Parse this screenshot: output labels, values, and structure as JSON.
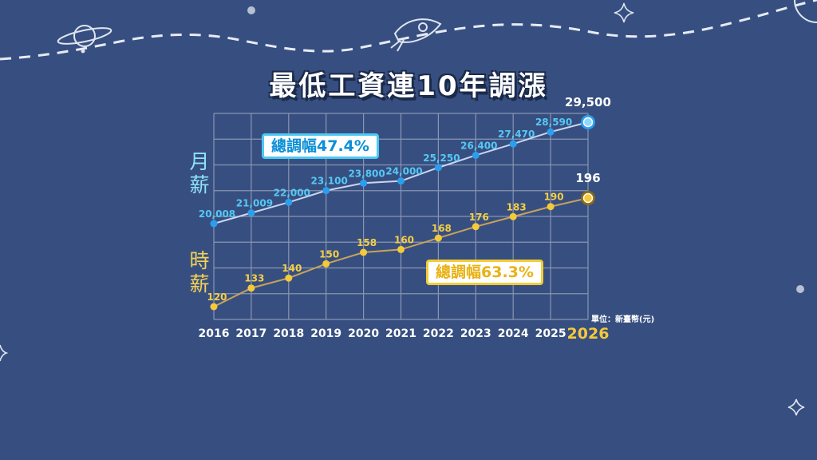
{
  "title": "最低工資連10年調漲",
  "side_labels": {
    "monthly": "月薪",
    "hourly": "時薪"
  },
  "callouts": {
    "monthly": "總調幅47.4%",
    "hourly": "總調幅63.3%"
  },
  "unit_note": "單位：新臺幣(元)",
  "colors": {
    "background": "#374f80",
    "monthly_line": "#c9d6f0",
    "monthly_point": "#2a9ff0",
    "monthly_label": "#55c8f5",
    "hourly_line": "#c7a35a",
    "hourly_point": "#f5c93a",
    "hourly_label": "#f5cf46",
    "grid": "#8995b3",
    "highlight_year": "#f5c93a"
  },
  "chart_data": {
    "type": "line",
    "categories": [
      "2016",
      "2017",
      "2018",
      "2019",
      "2020",
      "2021",
      "2022",
      "2023",
      "2024",
      "2025",
      "2026"
    ],
    "series": [
      {
        "name": "月薪",
        "values": [
          20008,
          21009,
          22000,
          23100,
          23800,
          24000,
          25250,
          26400,
          27470,
          28590,
          29500
        ],
        "labels": [
          "20,008",
          "21,009",
          "22,000",
          "23,100",
          "23,800",
          "24,000",
          "25,250",
          "26,400",
          "27,470",
          "28,590",
          "29,500"
        ]
      },
      {
        "name": "時薪",
        "values": [
          120,
          133,
          140,
          150,
          158,
          160,
          168,
          176,
          183,
          190,
          196
        ],
        "labels": [
          "120",
          "133",
          "140",
          "150",
          "158",
          "160",
          "168",
          "176",
          "183",
          "190",
          "196"
        ]
      }
    ],
    "highlight_category": "2026",
    "grid": true,
    "title": "最低工資連10年調漲",
    "xlabel": "",
    "ylabel": ""
  }
}
